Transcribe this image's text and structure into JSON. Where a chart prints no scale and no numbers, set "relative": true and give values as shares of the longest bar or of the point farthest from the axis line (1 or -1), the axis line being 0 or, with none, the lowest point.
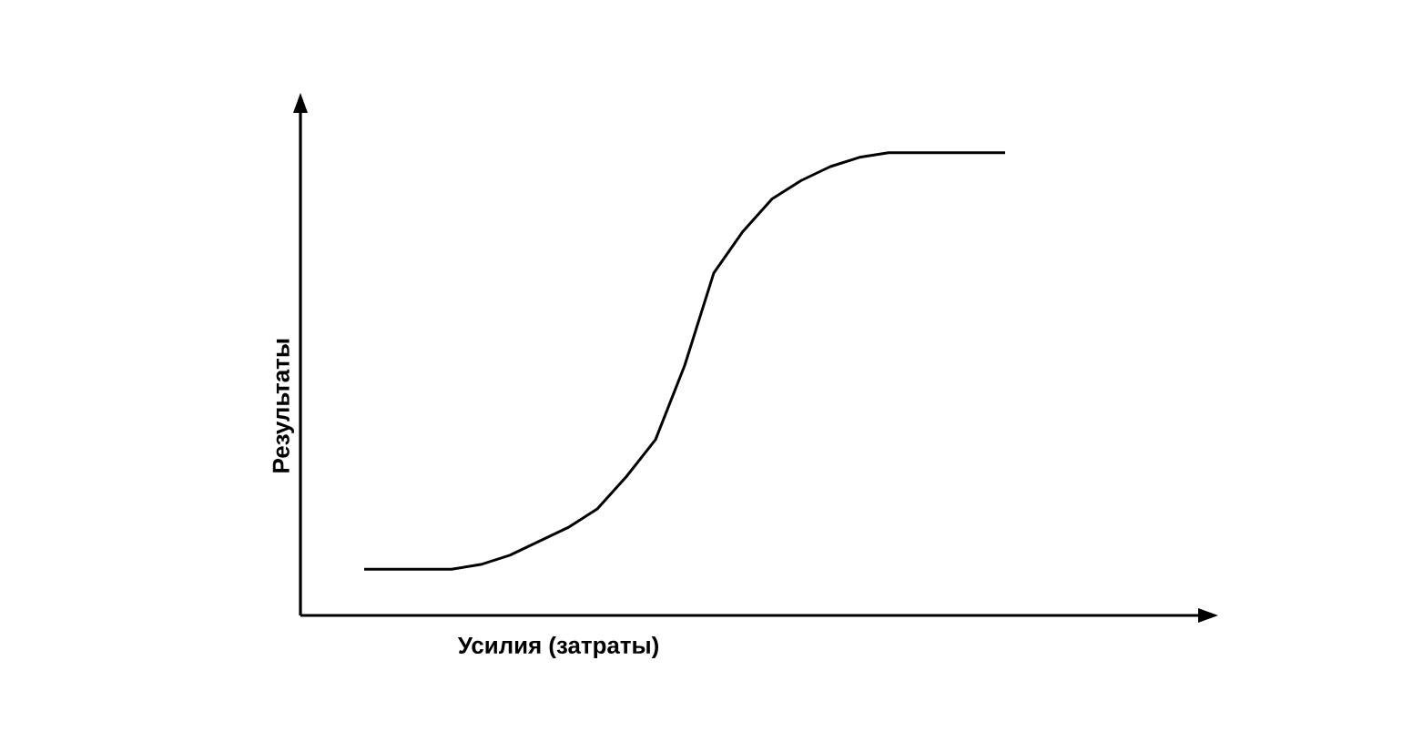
{
  "chart_data": {
    "type": "line",
    "xlabel": "Усилия (затраты)",
    "ylabel": "Результаты",
    "relative": true,
    "marker": "none",
    "line_style": "solid",
    "categories": [
      null,
      null,
      null,
      null,
      null,
      null,
      null,
      null,
      null,
      null,
      null,
      null,
      null,
      null,
      null,
      null,
      null,
      null,
      null,
      null,
      null,
      null,
      null
    ],
    "series": [
      {
        "color": "#000000",
        "values": [
          0.1,
          0.1,
          0.1,
          0.1,
          0.11,
          0.13,
          0.16,
          0.19,
          0.23,
          0.3,
          0.38,
          0.54,
          0.74,
          0.83,
          0.9,
          0.94,
          0.97,
          0.99,
          1.0,
          1.0,
          1.0,
          1.0,
          1.0
        ]
      }
    ]
  }
}
